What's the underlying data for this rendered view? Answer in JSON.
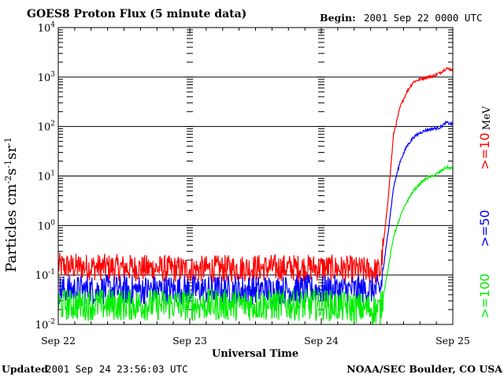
{
  "header": {
    "title": "GOES8 Proton Flux (5 minute data)",
    "begin_label": "Begin:",
    "begin_value": "2001 Sep 22 0000 UTC"
  },
  "footer": {
    "updated_label": "Updated",
    "updated_value": "2001 Sep 24 23:56:03 UTC",
    "credit": "NOAA/SEC Boulder, CO USA"
  },
  "chart_data": {
    "type": "line",
    "title": "GOES8 Proton Flux (5 minute data)",
    "xlabel": "Universal Time",
    "ylabel": "Particles cm-2s-1sr-1",
    "y_scale": "log",
    "ylim": [
      0.01,
      10000
    ],
    "y_ticks": [
      {
        "base": "10",
        "exp": "4",
        "value": 10000
      },
      {
        "base": "10",
        "exp": "3",
        "value": 1000
      },
      {
        "base": "10",
        "exp": "2",
        "value": 100
      },
      {
        "base": "10",
        "exp": "1",
        "value": 10
      },
      {
        "base": "10",
        "exp": "0",
        "value": 1
      },
      {
        "base": "10",
        "exp": "-1",
        "value": 0.1
      },
      {
        "base": "10",
        "exp": "-2",
        "value": 0.01
      }
    ],
    "x_tick_labels": [
      "Sep 22",
      "Sep 23",
      "Sep 24",
      "Sep 25"
    ],
    "xlim_days": [
      0,
      3
    ],
    "unit_label": "MeV",
    "series": [
      {
        "name": ">=10",
        "color": "#ff0000",
        "x": [
          0,
          0.5,
          1.0,
          1.5,
          2.0,
          2.45,
          2.5,
          2.55,
          2.6,
          2.65,
          2.7,
          2.75,
          2.8,
          2.85,
          2.9,
          2.95,
          3.0
        ],
        "values": [
          0.15,
          0.14,
          0.13,
          0.14,
          0.14,
          0.12,
          2.0,
          70,
          250,
          500,
          800,
          900,
          1000,
          1050,
          1200,
          1500,
          1400
        ]
      },
      {
        "name": ">=50",
        "color": "#0000ff",
        "x": [
          0,
          0.5,
          1.0,
          1.5,
          2.0,
          2.45,
          2.5,
          2.55,
          2.6,
          2.65,
          2.7,
          2.75,
          2.8,
          2.85,
          2.9,
          2.95,
          3.0
        ],
        "values": [
          0.05,
          0.05,
          0.05,
          0.05,
          0.05,
          0.05,
          0.5,
          6,
          20,
          40,
          60,
          75,
          85,
          90,
          95,
          120,
          110
        ]
      },
      {
        "name": ">=100",
        "color": "#00ee00",
        "x": [
          0,
          0.5,
          1.0,
          1.5,
          2.0,
          2.45,
          2.5,
          2.55,
          2.6,
          2.65,
          2.7,
          2.75,
          2.8,
          2.85,
          2.9,
          2.95,
          3.0
        ],
        "values": [
          0.025,
          0.025,
          0.025,
          0.025,
          0.025,
          0.02,
          0.1,
          0.6,
          1.5,
          3,
          5,
          7,
          9,
          10,
          12,
          15,
          14
        ]
      }
    ]
  }
}
